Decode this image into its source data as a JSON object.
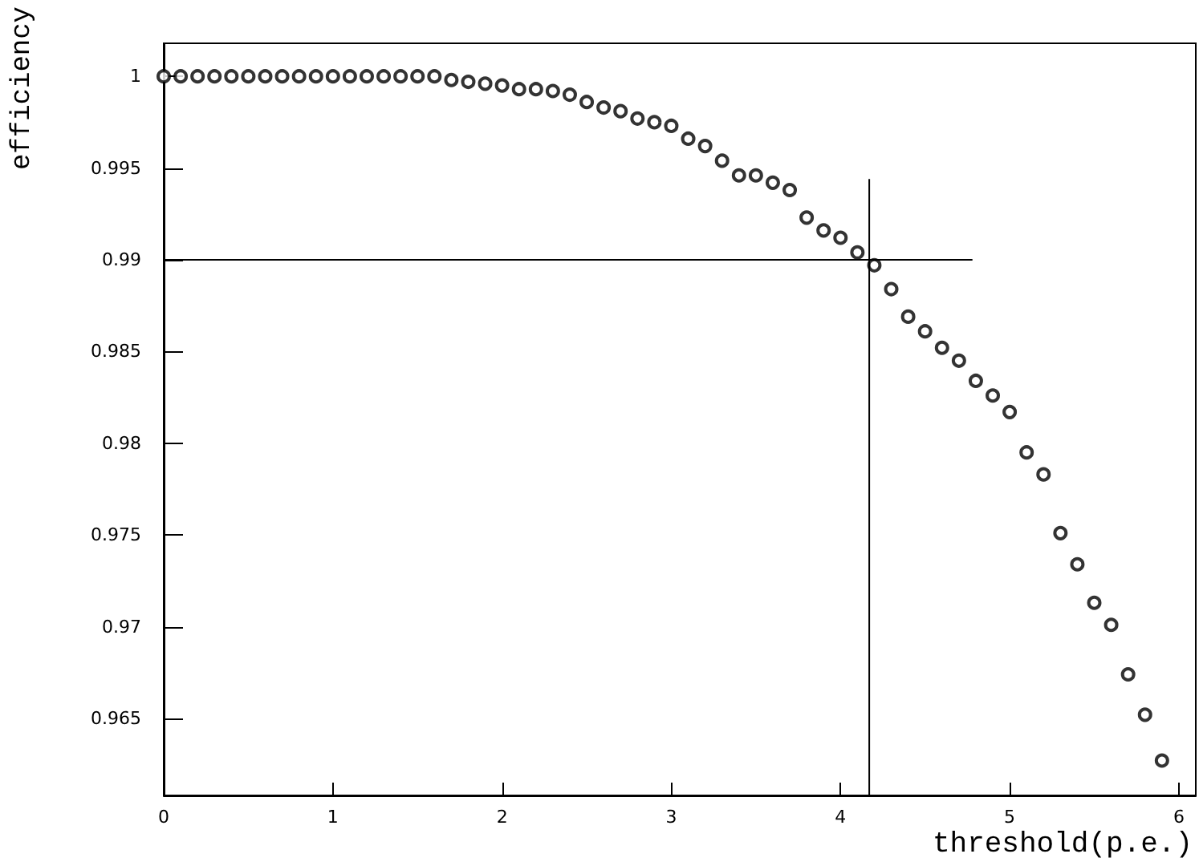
{
  "chart_data": {
    "type": "scatter",
    "xlabel": "threshold(p.e.)",
    "ylabel": "efficiency",
    "xlim": [
      0,
      6.1
    ],
    "xticks": [
      0,
      1,
      2,
      3,
      4,
      5,
      6
    ],
    "ylim": [
      0.9608,
      1.0018
    ],
    "yticks": [
      {
        "value": 0.965,
        "label": "0.965"
      },
      {
        "value": 0.97,
        "label": "0.97"
      },
      {
        "value": 0.975,
        "label": "0.975"
      },
      {
        "value": 0.98,
        "label": "0.98"
      },
      {
        "value": 0.985,
        "label": "0.985"
      },
      {
        "value": 0.99,
        "label": "0.99"
      },
      {
        "value": 0.995,
        "label": "0.995"
      },
      {
        "value": 1,
        "label": "1"
      }
    ],
    "grid": false,
    "legend": false,
    "marker": "circle",
    "series": [
      {
        "color": "#000000",
        "x": [
          0,
          0.1,
          0.2,
          0.3,
          0.4,
          0.5,
          0.6,
          0.7,
          0.8,
          0.9,
          1.0,
          1.1,
          1.2,
          1.3,
          1.4,
          1.5,
          1.6,
          1.7,
          1.8,
          1.9,
          2.0,
          2.1,
          2.2,
          2.3,
          2.4,
          2.5,
          2.6,
          2.7,
          2.8,
          2.9,
          3.0,
          3.1,
          3.2,
          3.3,
          3.4,
          3.5,
          3.6,
          3.7,
          3.8,
          3.9,
          4.0,
          4.1,
          4.2,
          4.3,
          4.4,
          4.5,
          4.6,
          4.7,
          4.8,
          4.9,
          5.0,
          5.1,
          5.2,
          5.3,
          5.4,
          5.5,
          5.6,
          5.7,
          5.8,
          5.9
        ],
        "values": [
          1,
          1,
          1,
          1,
          1,
          1,
          1,
          1,
          1,
          1,
          1,
          1,
          1,
          1,
          1,
          1,
          1,
          0.9998,
          0.9997,
          0.9996,
          0.9995,
          0.9993,
          0.9993,
          0.9992,
          0.999,
          0.9986,
          0.9983,
          0.9981,
          0.9977,
          0.9975,
          0.9973,
          0.9966,
          0.9962,
          0.9954,
          0.9946,
          0.9946,
          0.9942,
          0.9938,
          0.9923,
          0.9916,
          0.9912,
          0.9904,
          0.9897,
          0.9884,
          0.9869,
          0.9861,
          0.9852,
          0.9845,
          0.9834,
          0.9826,
          0.9817,
          0.9795,
          0.9783,
          0.9751,
          0.9734,
          0.9713,
          0.9701,
          0.9674,
          0.9652,
          0.9627
        ]
      },
      {
        "type": "line",
        "color": "#000000",
        "marker": "none",
        "line_style": "solid",
        "x": [
          0,
          4.78
        ],
        "values": [
          0.99,
          0.99
        ]
      },
      {
        "type": "line",
        "color": "#000000",
        "marker": "none",
        "line_style": "solid",
        "x": [
          4.17,
          4.17
        ],
        "values": [
          0.9608,
          0.9944
        ]
      }
    ]
  }
}
